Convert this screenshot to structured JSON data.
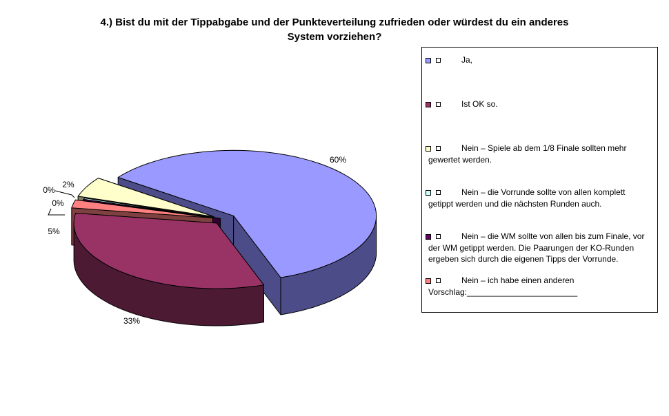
{
  "chart_data": {
    "type": "pie",
    "title_lines": [
      "4.) Bist du mit der Tippabgabe und der Punkteverteilung zufrieden oder würdest du ein anderes",
      "System vorziehen?"
    ],
    "slices": [
      {
        "legend": [
          "Ja,"
        ],
        "value": 60,
        "label": "60%",
        "color": "#9999ff",
        "side": "#4c4c88"
      },
      {
        "legend": [
          "Ist OK so."
        ],
        "value": 33,
        "label": "33%",
        "color": "#993366",
        "side": "#4d1a33"
      },
      {
        "legend": [
          "Nein – ich habe einen anderen",
          "Vorschlag:________________________"
        ],
        "value": 2,
        "label": "2%",
        "color": "#ff8080",
        "side": "#7f4040"
      },
      {
        "legend": [
          "Nein – die WM sollte von allen bis zum Finale, vor",
          "der WM getippt werden. Die Paarungen der KO-Runden",
          "ergeben sich durch die eigenen Tipps der Vorrunde."
        ],
        "value": 0.3,
        "label": "0%",
        "color": "#660066",
        "side": "#330033"
      },
      {
        "legend": [
          "Nein – die Vorrunde sollte von allen komplett",
          "getippt werden und die nächsten Runden auch."
        ],
        "value": 0.3,
        "label": "0%",
        "color": "#ccffff",
        "side": "#667f7f"
      },
      {
        "legend": [
          "Nein – Spiele ab dem 1/8 Finale sollten mehr",
          "gewertet werden."
        ],
        "value": 5,
        "label": "5%",
        "color": "#ffffcc",
        "side": "#808066"
      }
    ],
    "legend_order": [
      0,
      1,
      5,
      4,
      3,
      2
    ],
    "legend_placement": "right"
  }
}
